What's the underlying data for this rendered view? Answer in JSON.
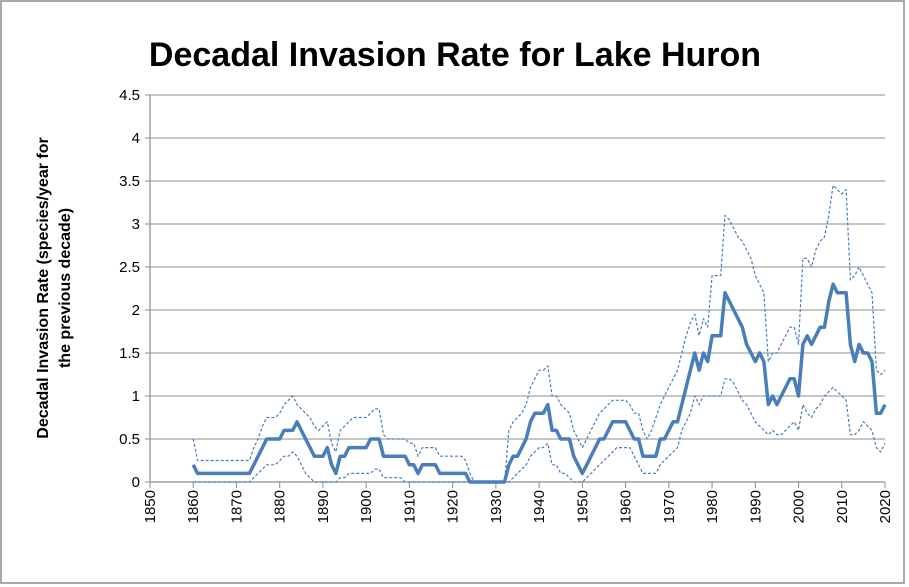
{
  "chart_data": {
    "type": "line",
    "title": "Decadal Invasion Rate for Lake Huron",
    "ylabel": [
      "Decadal Invasion Rate (species/year for",
      "the previous decade)"
    ],
    "xlim": [
      1850,
      2020
    ],
    "xticks": [
      1850,
      1860,
      1870,
      1880,
      1890,
      1900,
      1910,
      1920,
      1930,
      1940,
      1950,
      1960,
      1970,
      1980,
      1990,
      2000,
      2010,
      2020
    ],
    "ylim": [
      0,
      4.5
    ],
    "yticks": [
      0,
      0.5,
      1,
      1.5,
      2,
      2.5,
      3,
      3.5,
      4,
      4.5
    ],
    "grid": true,
    "x": [
      1860,
      1861,
      1862,
      1863,
      1864,
      1865,
      1866,
      1867,
      1868,
      1869,
      1870,
      1871,
      1872,
      1873,
      1874,
      1875,
      1876,
      1877,
      1878,
      1879,
      1880,
      1881,
      1882,
      1883,
      1884,
      1885,
      1886,
      1887,
      1888,
      1889,
      1890,
      1891,
      1892,
      1893,
      1894,
      1895,
      1896,
      1897,
      1898,
      1899,
      1900,
      1901,
      1902,
      1903,
      1904,
      1905,
      1906,
      1907,
      1908,
      1909,
      1910,
      1911,
      1912,
      1913,
      1914,
      1915,
      1916,
      1917,
      1918,
      1919,
      1920,
      1921,
      1922,
      1923,
      1924,
      1925,
      1926,
      1927,
      1928,
      1929,
      1930,
      1931,
      1932,
      1933,
      1934,
      1935,
      1936,
      1937,
      1938,
      1939,
      1940,
      1941,
      1942,
      1943,
      1944,
      1945,
      1946,
      1947,
      1948,
      1949,
      1950,
      1951,
      1952,
      1953,
      1954,
      1955,
      1956,
      1957,
      1958,
      1959,
      1960,
      1961,
      1962,
      1963,
      1964,
      1965,
      1966,
      1967,
      1968,
      1969,
      1970,
      1971,
      1972,
      1973,
      1974,
      1975,
      1976,
      1977,
      1978,
      1979,
      1980,
      1981,
      1982,
      1983,
      1984,
      1985,
      1986,
      1987,
      1988,
      1989,
      1990,
      1991,
      1992,
      1993,
      1994,
      1995,
      1996,
      1997,
      1998,
      1999,
      2000,
      2001,
      2002,
      2003,
      2004,
      2005,
      2006,
      2007,
      2008,
      2009,
      2010,
      2011,
      2012,
      2013,
      2014,
      2015,
      2016,
      2017,
      2018,
      2019,
      2020
    ],
    "series": [
      {
        "color": "#4a7ebb",
        "dashed": false,
        "width": 3.5,
        "values": [
          0.2,
          0.1,
          0.1,
          0.1,
          0.1,
          0.1,
          0.1,
          0.1,
          0.1,
          0.1,
          0.1,
          0.1,
          0.1,
          0.1,
          0.2,
          0.3,
          0.4,
          0.5,
          0.5,
          0.5,
          0.5,
          0.6,
          0.6,
          0.6,
          0.7,
          0.6,
          0.5,
          0.4,
          0.3,
          0.3,
          0.3,
          0.4,
          0.2,
          0.1,
          0.3,
          0.3,
          0.4,
          0.4,
          0.4,
          0.4,
          0.4,
          0.5,
          0.5,
          0.5,
          0.3,
          0.3,
          0.3,
          0.3,
          0.3,
          0.3,
          0.2,
          0.2,
          0.1,
          0.2,
          0.2,
          0.2,
          0.2,
          0.1,
          0.1,
          0.1,
          0.1,
          0.1,
          0.1,
          0.1,
          0,
          0,
          0,
          0,
          0,
          0,
          0,
          0,
          0,
          0.2,
          0.3,
          0.3,
          0.4,
          0.5,
          0.7,
          0.8,
          0.8,
          0.8,
          0.9,
          0.6,
          0.6,
          0.5,
          0.5,
          0.5,
          0.3,
          0.2,
          0.1,
          0.2,
          0.3,
          0.4,
          0.5,
          0.5,
          0.6,
          0.7,
          0.7,
          0.7,
          0.7,
          0.6,
          0.5,
          0.5,
          0.3,
          0.3,
          0.3,
          0.3,
          0.5,
          0.5,
          0.6,
          0.7,
          0.7,
          0.9,
          1.1,
          1.3,
          1.5,
          1.3,
          1.5,
          1.4,
          1.7,
          1.7,
          1.7,
          2.2,
          2.1,
          2.0,
          1.9,
          1.8,
          1.6,
          1.5,
          1.4,
          1.5,
          1.4,
          0.9,
          1.0,
          0.9,
          1.0,
          1.1,
          1.2,
          1.2,
          1.0,
          1.6,
          1.7,
          1.6,
          1.7,
          1.8,
          1.8,
          2.1,
          2.3,
          2.2,
          2.2,
          2.2,
          1.6,
          1.4,
          1.6,
          1.5,
          1.5,
          1.4,
          0.8,
          0.8,
          0.9
        ]
      },
      {
        "color": "#4a7ebb",
        "dashed": true,
        "width": 1.2,
        "values": [
          0.5,
          0.25,
          0.25,
          0.25,
          0.25,
          0.25,
          0.25,
          0.25,
          0.25,
          0.25,
          0.25,
          0.25,
          0.25,
          0.25,
          0.4,
          0.5,
          0.65,
          0.75,
          0.75,
          0.75,
          0.8,
          0.9,
          0.95,
          1.0,
          0.9,
          0.85,
          0.8,
          0.75,
          0.65,
          0.6,
          0.65,
          0.7,
          0.45,
          0.35,
          0.6,
          0.65,
          0.7,
          0.75,
          0.75,
          0.75,
          0.75,
          0.8,
          0.85,
          0.85,
          0.55,
          0.5,
          0.5,
          0.5,
          0.5,
          0.5,
          0.45,
          0.45,
          0.3,
          0.4,
          0.4,
          0.4,
          0.4,
          0.3,
          0.3,
          0.3,
          0.3,
          0.3,
          0.3,
          0.25,
          0.1,
          0,
          0,
          0,
          0,
          0,
          0,
          0,
          0,
          0.6,
          0.7,
          0.75,
          0.8,
          0.9,
          1.1,
          1.2,
          1.3,
          1.3,
          1.35,
          1.0,
          1.0,
          0.9,
          0.85,
          0.8,
          0.6,
          0.5,
          0.4,
          0.5,
          0.6,
          0.7,
          0.8,
          0.85,
          0.9,
          0.95,
          0.95,
          0.95,
          0.95,
          0.9,
          0.8,
          0.8,
          0.6,
          0.5,
          0.6,
          0.75,
          0.9,
          1.0,
          1.1,
          1.2,
          1.3,
          1.5,
          1.7,
          1.85,
          1.95,
          1.7,
          1.9,
          1.8,
          2.4,
          2.4,
          2.4,
          3.1,
          3.05,
          2.95,
          2.85,
          2.8,
          2.7,
          2.6,
          2.4,
          2.3,
          2.2,
          1.4,
          1.5,
          1.5,
          1.6,
          1.7,
          1.8,
          1.8,
          1.6,
          2.6,
          2.6,
          2.5,
          2.7,
          2.8,
          2.85,
          3.1,
          3.45,
          3.4,
          3.35,
          3.4,
          2.35,
          2.4,
          2.5,
          2.4,
          2.3,
          2.2,
          1.3,
          1.25,
          1.3
        ]
      },
      {
        "color": "#4a7ebb",
        "dashed": true,
        "width": 1.2,
        "values": [
          0,
          0,
          0,
          0,
          0,
          0,
          0,
          0,
          0,
          0,
          0,
          0,
          0,
          0,
          0.05,
          0.1,
          0.15,
          0.2,
          0.2,
          0.2,
          0.25,
          0.3,
          0.3,
          0.35,
          0.3,
          0.2,
          0.1,
          0.05,
          0,
          0,
          0,
          0,
          0,
          0,
          0.05,
          0.05,
          0.1,
          0.1,
          0.1,
          0.1,
          0.1,
          0.1,
          0.15,
          0.15,
          0.05,
          0.05,
          0.05,
          0.05,
          0.05,
          0,
          0,
          0,
          0,
          0,
          0,
          0,
          0,
          0,
          0,
          0,
          0,
          0,
          0,
          0,
          0,
          0,
          0,
          0,
          0,
          0,
          0,
          0,
          0,
          0,
          0.05,
          0.1,
          0.15,
          0.2,
          0.3,
          0.35,
          0.4,
          0.4,
          0.45,
          0.2,
          0.2,
          0.1,
          0.1,
          0.05,
          0,
          0,
          0,
          0.05,
          0.1,
          0.15,
          0.2,
          0.25,
          0.3,
          0.35,
          0.4,
          0.4,
          0.4,
          0.4,
          0.3,
          0.2,
          0.1,
          0.1,
          0.1,
          0.1,
          0.2,
          0.25,
          0.3,
          0.35,
          0.4,
          0.6,
          0.7,
          0.8,
          1.0,
          0.9,
          1.0,
          1.0,
          1.0,
          1.0,
          1.0,
          1.2,
          1.2,
          1.15,
          1.05,
          0.95,
          0.9,
          0.8,
          0.7,
          0.65,
          0.6,
          0.55,
          0.6,
          0.55,
          0.55,
          0.6,
          0.65,
          0.7,
          0.6,
          0.9,
          0.8,
          0.75,
          0.85,
          0.9,
          1.0,
          1.05,
          1.1,
          1.05,
          1.0,
          0.95,
          0.55,
          0.55,
          0.6,
          0.7,
          0.65,
          0.6,
          0.4,
          0.35,
          0.45
        ]
      }
    ]
  }
}
